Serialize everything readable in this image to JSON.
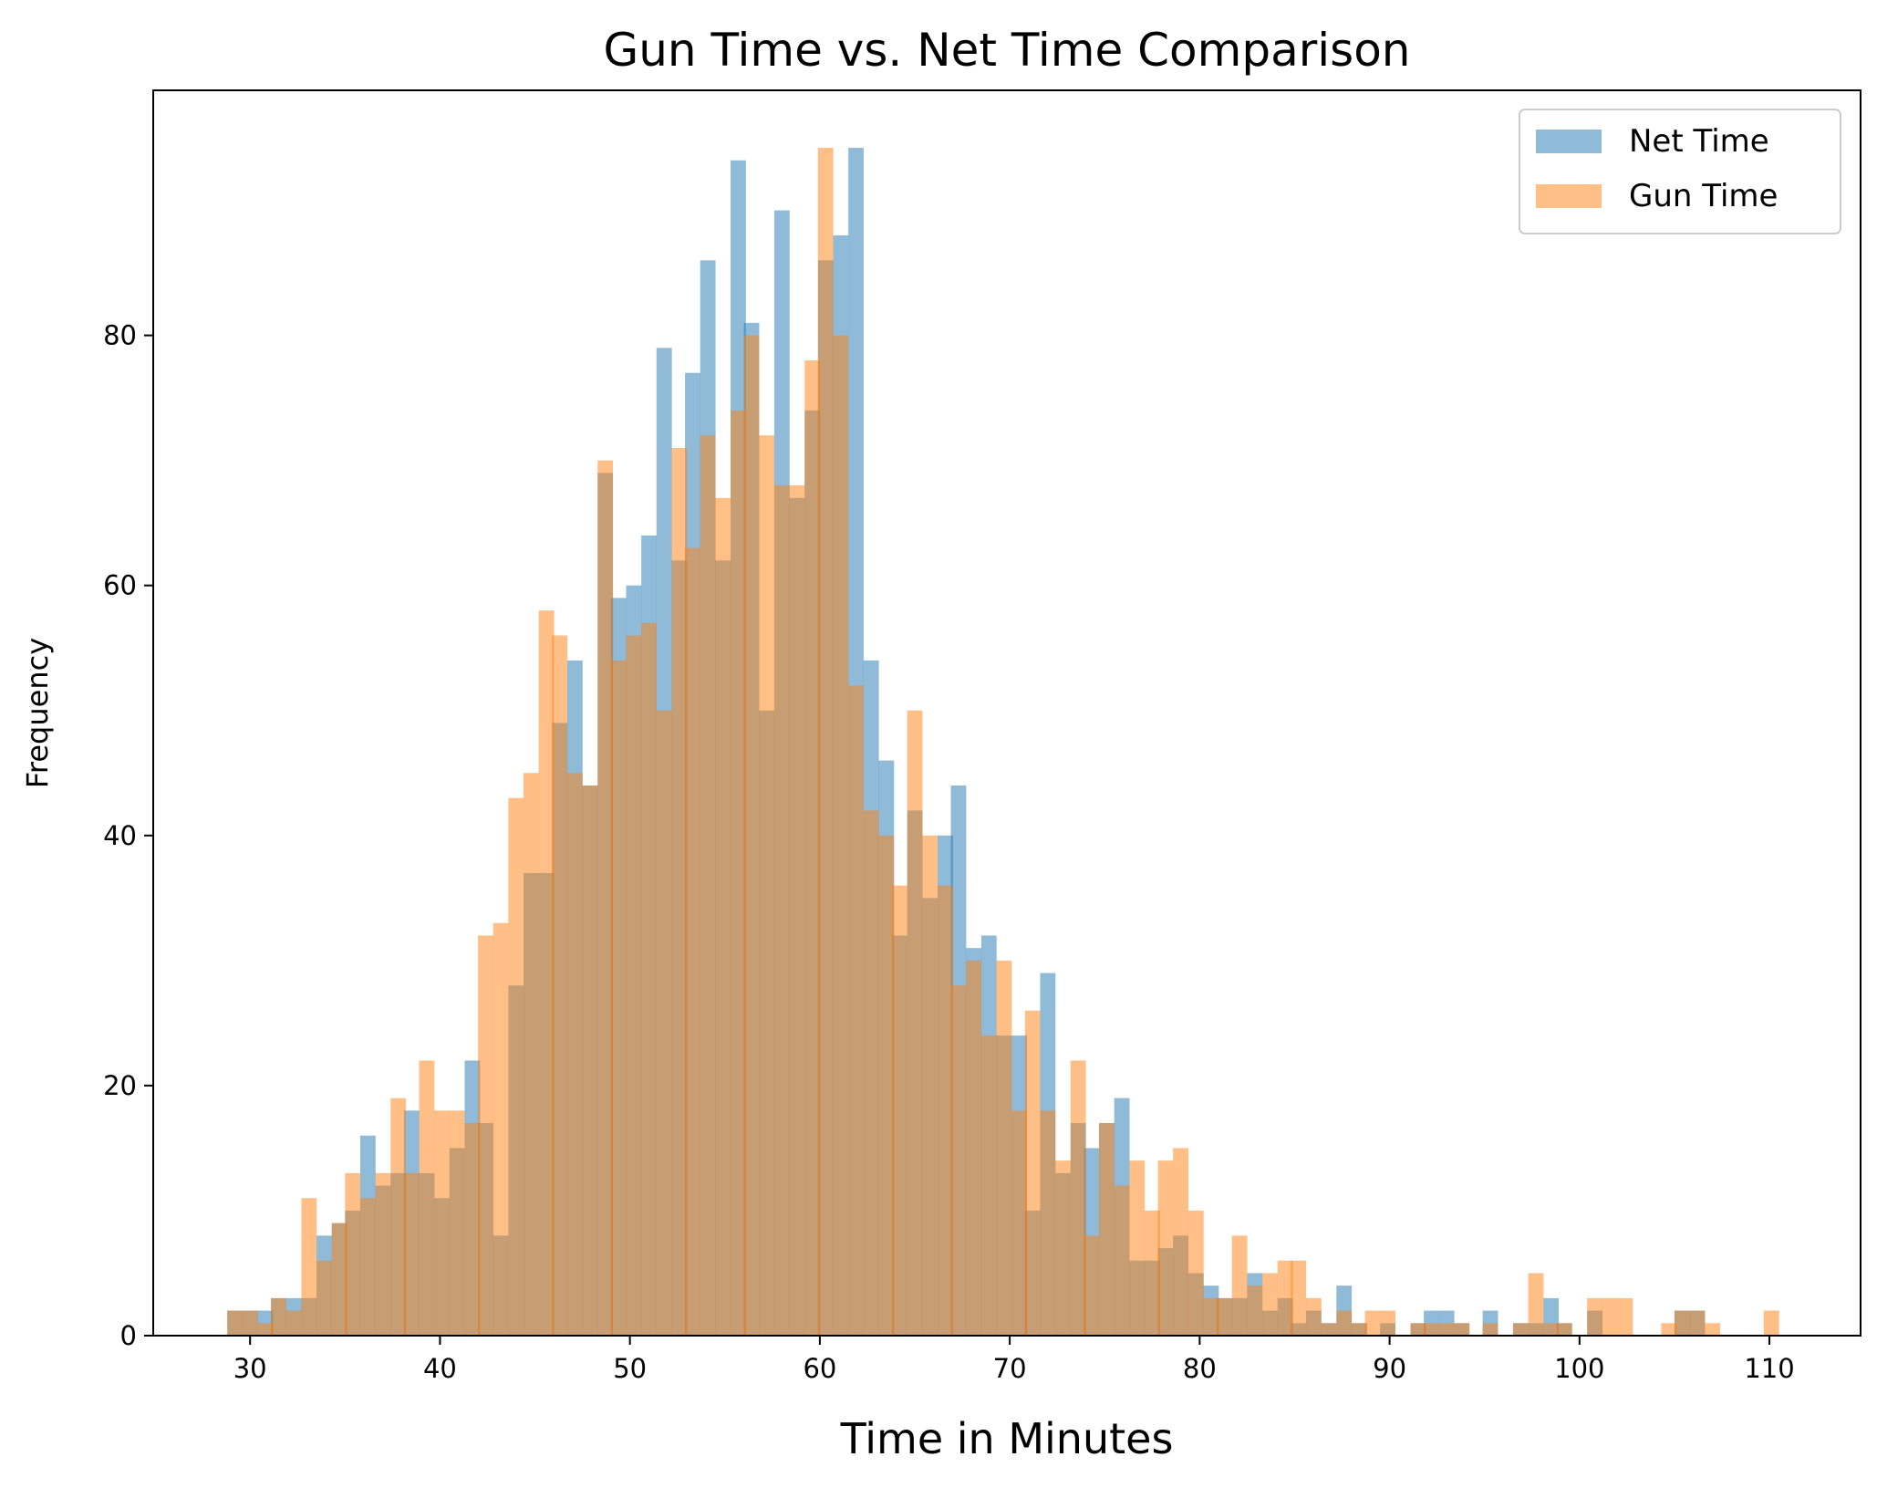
{
  "chart_data": {
    "type": "bar",
    "title": "Gun Time vs. Net Time Comparison",
    "xlabel": "Time in Minutes",
    "ylabel": "Frequency",
    "xlim": [
      24.9,
      114.8
    ],
    "ylim": [
      0,
      99.6
    ],
    "xticks": [
      30,
      40,
      50,
      60,
      70,
      80,
      90,
      100,
      110
    ],
    "yticks": [
      0,
      20,
      40,
      60,
      80
    ],
    "legend": {
      "placement": "top-right"
    },
    "grid": false,
    "series": [
      {
        "name": "Net Time",
        "color": "#1f77b4",
        "alpha": 0.5,
        "bin_width": 0.7795,
        "bins": [
          [
            28.8,
            2
          ],
          [
            29.6,
            2
          ],
          [
            30.4,
            2
          ],
          [
            31.1,
            3
          ],
          [
            31.9,
            3
          ],
          [
            32.7,
            3
          ],
          [
            33.5,
            8
          ],
          [
            34.3,
            9
          ],
          [
            35.0,
            10
          ],
          [
            35.8,
            16
          ],
          [
            36.6,
            12
          ],
          [
            37.4,
            13
          ],
          [
            38.1,
            18
          ],
          [
            38.9,
            13
          ],
          [
            39.7,
            11
          ],
          [
            40.5,
            15
          ],
          [
            41.3,
            22
          ],
          [
            42.0,
            17
          ],
          [
            42.8,
            8
          ],
          [
            43.6,
            28
          ],
          [
            44.4,
            37
          ],
          [
            45.2,
            37
          ],
          [
            45.9,
            49
          ],
          [
            46.7,
            54
          ],
          [
            47.5,
            44
          ],
          [
            48.3,
            69
          ],
          [
            49.0,
            59
          ],
          [
            49.8,
            60
          ],
          [
            50.6,
            64
          ],
          [
            51.4,
            79
          ],
          [
            52.2,
            62
          ],
          [
            52.9,
            77
          ],
          [
            53.7,
            86
          ],
          [
            54.5,
            62
          ],
          [
            55.3,
            94
          ],
          [
            56.0,
            81
          ],
          [
            56.8,
            50
          ],
          [
            57.6,
            90
          ],
          [
            58.4,
            67
          ],
          [
            59.2,
            74
          ],
          [
            59.9,
            86
          ],
          [
            60.7,
            88
          ],
          [
            61.5,
            95
          ],
          [
            62.3,
            54
          ],
          [
            63.1,
            46
          ],
          [
            63.8,
            32
          ],
          [
            64.6,
            42
          ],
          [
            65.4,
            35
          ],
          [
            66.2,
            40
          ],
          [
            66.9,
            44
          ],
          [
            67.7,
            31
          ],
          [
            68.5,
            32
          ],
          [
            69.3,
            24
          ],
          [
            70.1,
            24
          ],
          [
            70.8,
            10
          ],
          [
            71.6,
            29
          ],
          [
            72.4,
            13
          ],
          [
            73.2,
            17
          ],
          [
            73.9,
            15
          ],
          [
            74.7,
            17
          ],
          [
            75.5,
            19
          ],
          [
            76.3,
            6
          ],
          [
            77.1,
            6
          ],
          [
            77.8,
            7
          ],
          [
            78.6,
            8
          ],
          [
            79.4,
            5
          ],
          [
            80.2,
            4
          ],
          [
            80.9,
            3
          ],
          [
            81.7,
            3
          ],
          [
            82.5,
            5
          ],
          [
            83.3,
            2
          ],
          [
            84.1,
            3
          ],
          [
            84.8,
            1
          ],
          [
            85.6,
            2
          ],
          [
            86.4,
            1
          ],
          [
            87.2,
            4
          ],
          [
            88.0,
            1
          ],
          [
            88.7,
            0
          ],
          [
            89.5,
            1
          ],
          [
            91.1,
            1
          ],
          [
            91.8,
            2
          ],
          [
            92.6,
            2
          ],
          [
            93.4,
            1
          ],
          [
            94.9,
            2
          ],
          [
            96.5,
            1
          ],
          [
            97.3,
            1
          ],
          [
            98.1,
            3
          ],
          [
            98.8,
            1
          ],
          [
            100.4,
            2
          ],
          [
            104.3,
            0
          ],
          [
            105.0,
            2
          ],
          [
            105.8,
            2
          ]
        ]
      },
      {
        "name": "Gun Time",
        "color": "#ff7f0e",
        "alpha": 0.5,
        "bin_width": 0.7795,
        "bins": [
          [
            28.8,
            2
          ],
          [
            29.6,
            2
          ],
          [
            30.4,
            1
          ],
          [
            31.1,
            3
          ],
          [
            31.9,
            2
          ],
          [
            32.7,
            11
          ],
          [
            33.5,
            6
          ],
          [
            34.3,
            9
          ],
          [
            35.0,
            13
          ],
          [
            35.8,
            11
          ],
          [
            36.6,
            13
          ],
          [
            37.4,
            19
          ],
          [
            38.1,
            13
          ],
          [
            38.9,
            22
          ],
          [
            39.7,
            18
          ],
          [
            40.5,
            18
          ],
          [
            41.3,
            17
          ],
          [
            42.0,
            32
          ],
          [
            42.8,
            33
          ],
          [
            43.6,
            43
          ],
          [
            44.4,
            45
          ],
          [
            45.2,
            58
          ],
          [
            45.9,
            56
          ],
          [
            46.7,
            45
          ],
          [
            47.5,
            44
          ],
          [
            48.3,
            70
          ],
          [
            49.0,
            54
          ],
          [
            49.8,
            56
          ],
          [
            50.6,
            57
          ],
          [
            51.4,
            50
          ],
          [
            52.2,
            71
          ],
          [
            52.9,
            63
          ],
          [
            53.7,
            72
          ],
          [
            54.5,
            67
          ],
          [
            55.3,
            74
          ],
          [
            56.0,
            80
          ],
          [
            56.8,
            72
          ],
          [
            57.6,
            68
          ],
          [
            58.4,
            68
          ],
          [
            59.2,
            78
          ],
          [
            59.9,
            95
          ],
          [
            60.7,
            80
          ],
          [
            61.5,
            52
          ],
          [
            62.3,
            42
          ],
          [
            63.1,
            40
          ],
          [
            63.8,
            36
          ],
          [
            64.6,
            50
          ],
          [
            65.4,
            40
          ],
          [
            66.2,
            36
          ],
          [
            66.9,
            28
          ],
          [
            67.7,
            30
          ],
          [
            68.5,
            24
          ],
          [
            69.3,
            30
          ],
          [
            70.1,
            18
          ],
          [
            70.8,
            26
          ],
          [
            71.6,
            18
          ],
          [
            72.4,
            14
          ],
          [
            73.2,
            22
          ],
          [
            73.9,
            8
          ],
          [
            74.7,
            17
          ],
          [
            75.5,
            12
          ],
          [
            76.3,
            14
          ],
          [
            77.1,
            10
          ],
          [
            77.8,
            14
          ],
          [
            78.6,
            15
          ],
          [
            79.4,
            10
          ],
          [
            80.2,
            3
          ],
          [
            80.9,
            3
          ],
          [
            81.7,
            8
          ],
          [
            82.5,
            4
          ],
          [
            83.3,
            5
          ],
          [
            84.1,
            6
          ],
          [
            84.8,
            6
          ],
          [
            85.6,
            3
          ],
          [
            86.4,
            1
          ],
          [
            87.2,
            2
          ],
          [
            88.0,
            1
          ],
          [
            88.7,
            2
          ],
          [
            89.5,
            2
          ],
          [
            91.1,
            1
          ],
          [
            91.8,
            1
          ],
          [
            92.6,
            1
          ],
          [
            93.4,
            1
          ],
          [
            94.9,
            1
          ],
          [
            96.5,
            1
          ],
          [
            97.3,
            5
          ],
          [
            98.1,
            1
          ],
          [
            98.8,
            1
          ],
          [
            100.4,
            3
          ],
          [
            101.2,
            3
          ],
          [
            102.0,
            3
          ],
          [
            104.3,
            1
          ],
          [
            105.0,
            2
          ],
          [
            105.8,
            2
          ],
          [
            106.6,
            1
          ],
          [
            109.7,
            2
          ]
        ]
      }
    ]
  }
}
